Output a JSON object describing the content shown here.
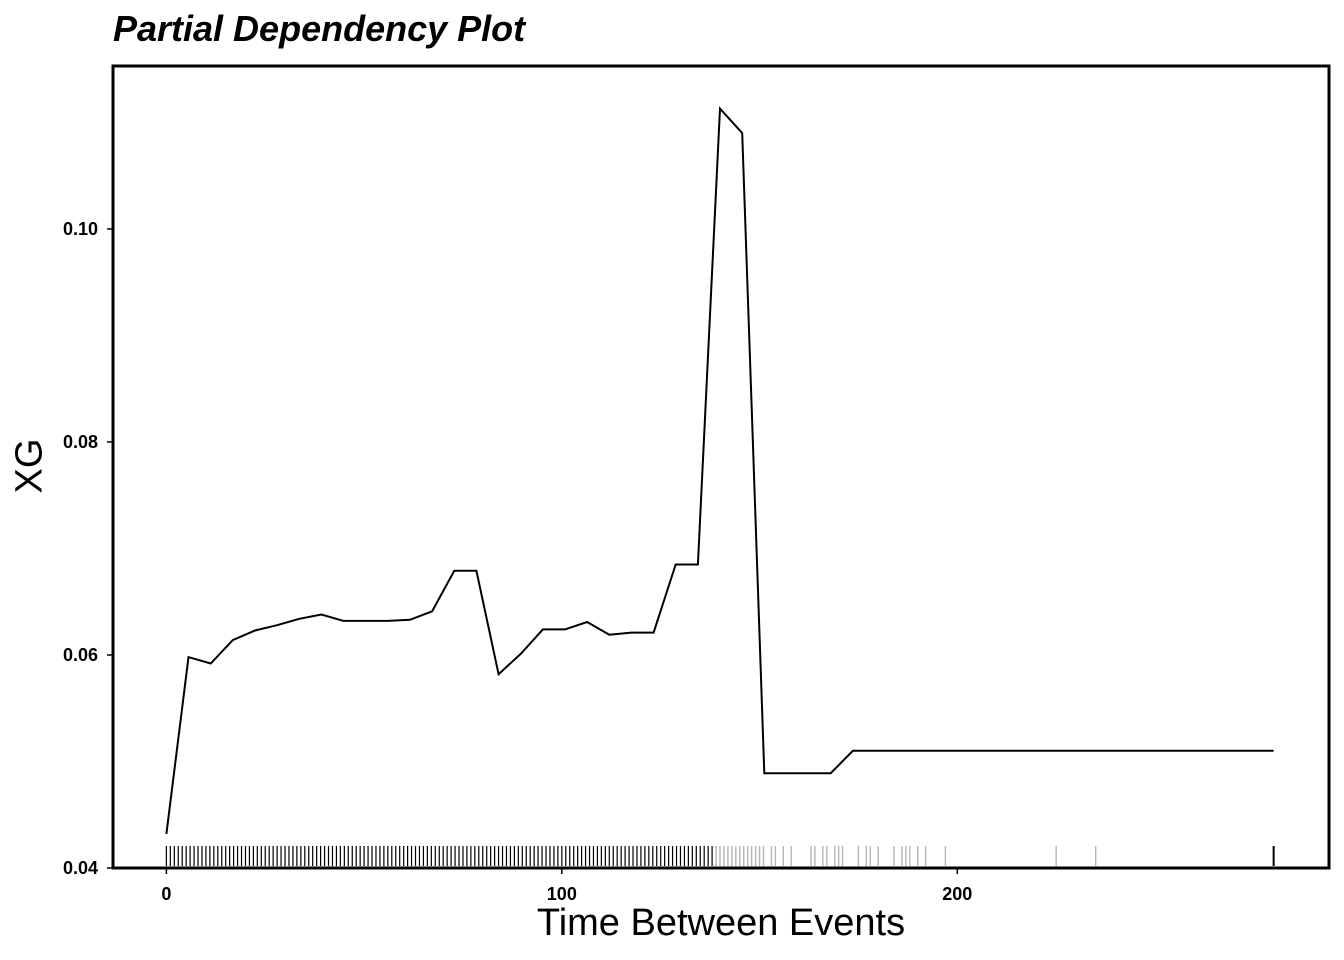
{
  "chart_data": {
    "type": "line",
    "title": "Partial Dependency Plot",
    "xlabel": "Time Between Events",
    "ylabel": "XG",
    "xlim": [
      -13.5,
      294
    ],
    "ylim": [
      0.04,
      0.1153
    ],
    "x_ticks": [
      0,
      100,
      200
    ],
    "y_ticks": [
      0.04,
      0.06,
      0.08,
      0.1
    ],
    "y_tick_labels": [
      "0.04",
      "0.06",
      "0.08",
      "0.10"
    ],
    "grid": false,
    "legend": "none",
    "line_color": "#000000",
    "series": [
      {
        "x": [
          0,
          5.6,
          11.2,
          16.8,
          22.4,
          28,
          33.6,
          39.2,
          44.8,
          50.4,
          56,
          61.6,
          67.2,
          72.8,
          78.4,
          84,
          89.6,
          95.2,
          100.8,
          106.4,
          112,
          117.6,
          123.2,
          128.8,
          134.4,
          140,
          145.6,
          151.2,
          156.8,
          162.4,
          168,
          173.6,
          179.2,
          280
        ],
        "y": [
          0.0432,
          0.0598,
          0.0592,
          0.0614,
          0.0623,
          0.0628,
          0.0634,
          0.0638,
          0.0632,
          0.0632,
          0.0632,
          0.0633,
          0.0641,
          0.0679,
          0.0679,
          0.0582,
          0.0601,
          0.0624,
          0.0624,
          0.0631,
          0.0619,
          0.0621,
          0.0621,
          0.0685,
          0.0685,
          0.1113,
          0.109,
          0.0489,
          0.0489,
          0.0489,
          0.0489,
          0.051,
          0.051,
          0.051
        ]
      }
    ],
    "rug": {
      "dense_range": [
        0,
        138.5
      ],
      "dense_step": 1,
      "color_dense": "#000000",
      "sparse": [
        139,
        140,
        141,
        142,
        143,
        144,
        145,
        146,
        147,
        148,
        149,
        150,
        151,
        153,
        154,
        156,
        158,
        163,
        164,
        166,
        167,
        169,
        170,
        171,
        175,
        177,
        178,
        180,
        184,
        186,
        187,
        188,
        190,
        192,
        197,
        225,
        235
      ],
      "color_sparse": "#b5b5b5",
      "outlier": [
        280
      ],
      "color_outlier": "#000000"
    }
  }
}
